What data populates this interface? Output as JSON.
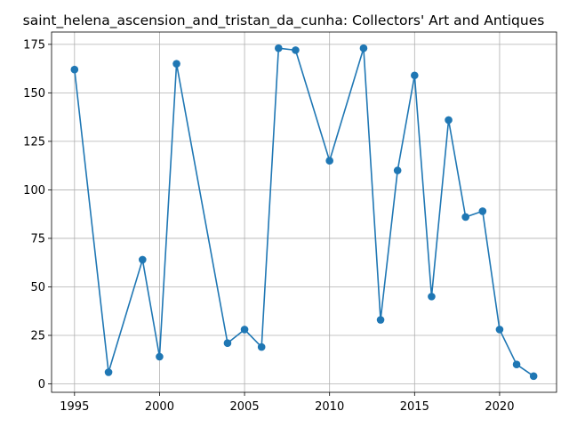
{
  "chart_data": {
    "type": "line",
    "title": "saint_helena_ascension_and_tristan_da_cunha: Collectors' Art and Antiques",
    "xlabel": "",
    "ylabel": "",
    "xlim": [
      1993.65,
      2023.35
    ],
    "ylim": [
      -4.35,
      181.35
    ],
    "x_ticks": [
      1995,
      2000,
      2005,
      2010,
      2015,
      2020
    ],
    "y_ticks": [
      0,
      25,
      50,
      75,
      100,
      125,
      150,
      175
    ],
    "grid": true,
    "series": [
      {
        "color": "#1f77b4",
        "marker": "circle",
        "x": [
          1995,
          1997,
          1999,
          2000,
          2001,
          2004,
          2005,
          2006,
          2007,
          2008,
          2010,
          2012,
          2013,
          2014,
          2015,
          2016,
          2017,
          2018,
          2019,
          2020,
          2021,
          2022
        ],
        "y": [
          162,
          6,
          64,
          14,
          165,
          21,
          28,
          19,
          173,
          172,
          115,
          173,
          33,
          110,
          159,
          45,
          136,
          86,
          89,
          28,
          10,
          4
        ]
      }
    ]
  }
}
